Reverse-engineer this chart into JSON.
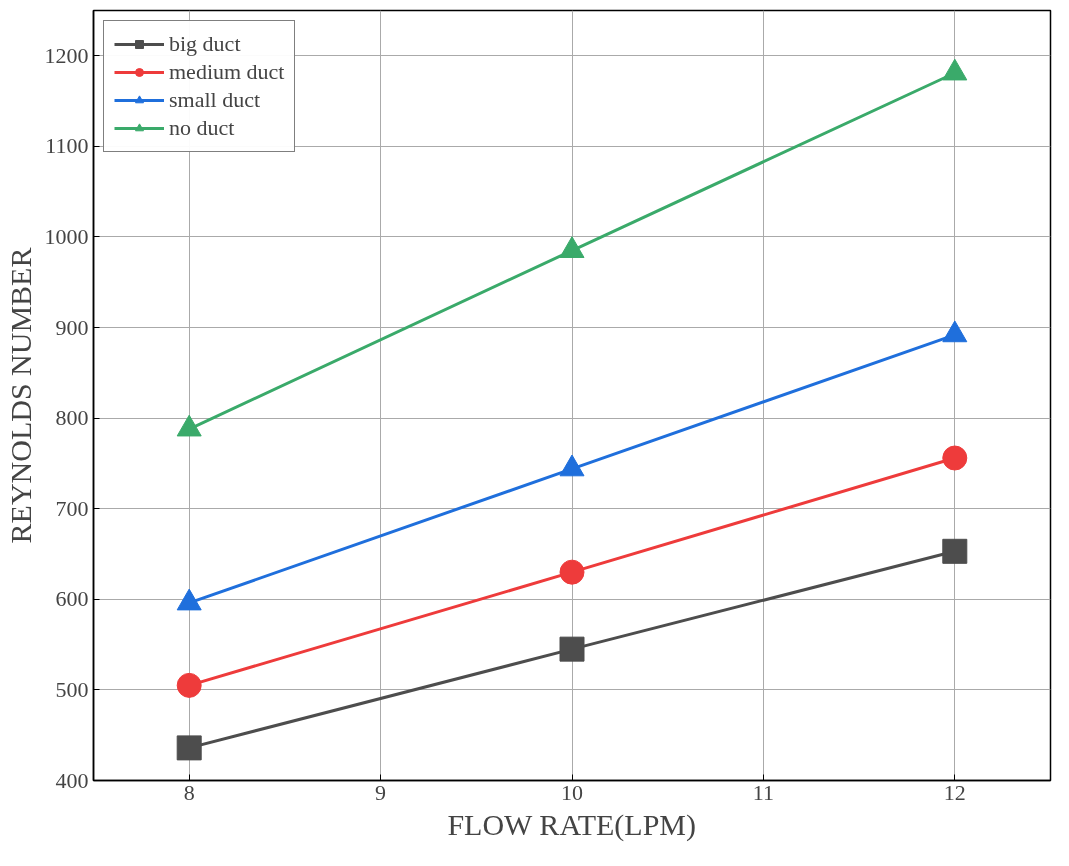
{
  "chart_data": {
    "type": "line",
    "xlabel": "FLOW RATE(LPM)",
    "ylabel": "REYNOLDS NUMBER",
    "x": [
      8,
      10,
      12
    ],
    "series": [
      {
        "name": "big duct",
        "color": "#4d4d4d",
        "marker": "square",
        "values": [
          436,
          545,
          653
        ]
      },
      {
        "name": "medium duct",
        "color": "#ee3b3b",
        "marker": "circle",
        "values": [
          505,
          630,
          756
        ]
      },
      {
        "name": "small duct",
        "color": "#1f6fdc",
        "marker": "triangle",
        "values": [
          596,
          744,
          892
        ]
      },
      {
        "name": "no duct",
        "color": "#3aaa6a",
        "marker": "triangle",
        "values": [
          788,
          985,
          1181
        ]
      }
    ],
    "xlim": [
      7.5,
      12.5
    ],
    "ylim": [
      400,
      1250
    ],
    "xticks": [
      8,
      9,
      10,
      11,
      12
    ],
    "yticks": [
      400,
      500,
      600,
      700,
      800,
      900,
      1000,
      1100,
      1200
    ],
    "grid": true,
    "legend": "top left",
    "line_style": "solid"
  }
}
